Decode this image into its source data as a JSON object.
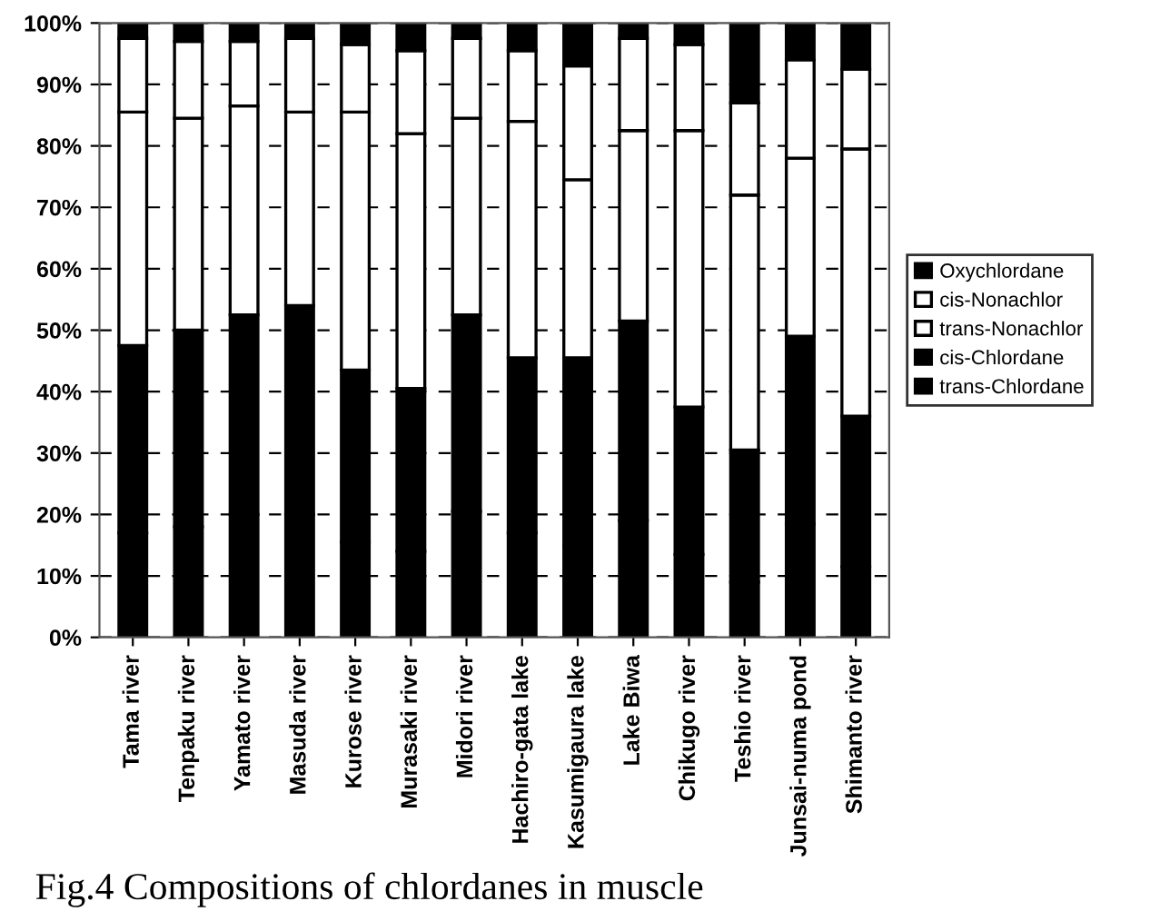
{
  "chart_data": {
    "type": "bar",
    "stacked": true,
    "categories": [
      "Tama river",
      "Tenpaku river",
      "Yamato river",
      "Masuda river",
      "Kurose river",
      "Murasaki river",
      "Midori river",
      "Hachiro-gata lake",
      "Kasumigaura lake",
      "Lake Biwa",
      "Chikugo river",
      "Teshio river",
      "Junsai-numa pond",
      "Shimanto river"
    ],
    "series": [
      {
        "name": "trans-Chlordane",
        "color": "#000000",
        "values": [
          17,
          18,
          20,
          20,
          15.5,
          14,
          20.5,
          17,
          15,
          19,
          13.5,
          9,
          18.5,
          11.5
        ]
      },
      {
        "name": "cis-Chlordane",
        "color": "#000000",
        "values": [
          30.5,
          32,
          32.5,
          34,
          28,
          26.5,
          32,
          28.5,
          30.5,
          32.5,
          24,
          21.5,
          30.5,
          24.5
        ]
      },
      {
        "name": "trans-Nonachlor",
        "color": "#ffffff",
        "values": [
          38,
          34.5,
          34,
          31.5,
          42,
          41.5,
          32,
          38.5,
          29,
          31,
          45,
          41.5,
          29,
          43.5
        ]
      },
      {
        "name": "cis-Nonachlor",
        "color": "#ffffff",
        "values": [
          12,
          12.5,
          10.5,
          12,
          11,
          13.5,
          13,
          11.5,
          18.5,
          15,
          14,
          15,
          16,
          13
        ]
      },
      {
        "name": "Oxychlordane",
        "color": "#000000",
        "values": [
          2.5,
          3,
          3,
          2.5,
          3.5,
          4.5,
          2.5,
          4.5,
          7,
          2.5,
          3.5,
          13,
          6,
          7.5
        ]
      }
    ],
    "ylim": [
      0,
      100
    ],
    "yticks": [
      {
        "value": 0,
        "label": "0%"
      },
      {
        "value": 10,
        "label": "10%"
      },
      {
        "value": 20,
        "label": "20%"
      },
      {
        "value": 30,
        "label": "30%"
      },
      {
        "value": 40,
        "label": "40%"
      },
      {
        "value": 50,
        "label": "50%"
      },
      {
        "value": 60,
        "label": "60%"
      },
      {
        "value": 70,
        "label": "70%"
      },
      {
        "value": 80,
        "label": "80%"
      },
      {
        "value": 90,
        "label": "90%"
      },
      {
        "value": 100,
        "label": "100%"
      }
    ],
    "grid": "y",
    "legend": "right",
    "annotations": [
      "Fig.4 Compositions of chlordanes in muscle"
    ]
  }
}
